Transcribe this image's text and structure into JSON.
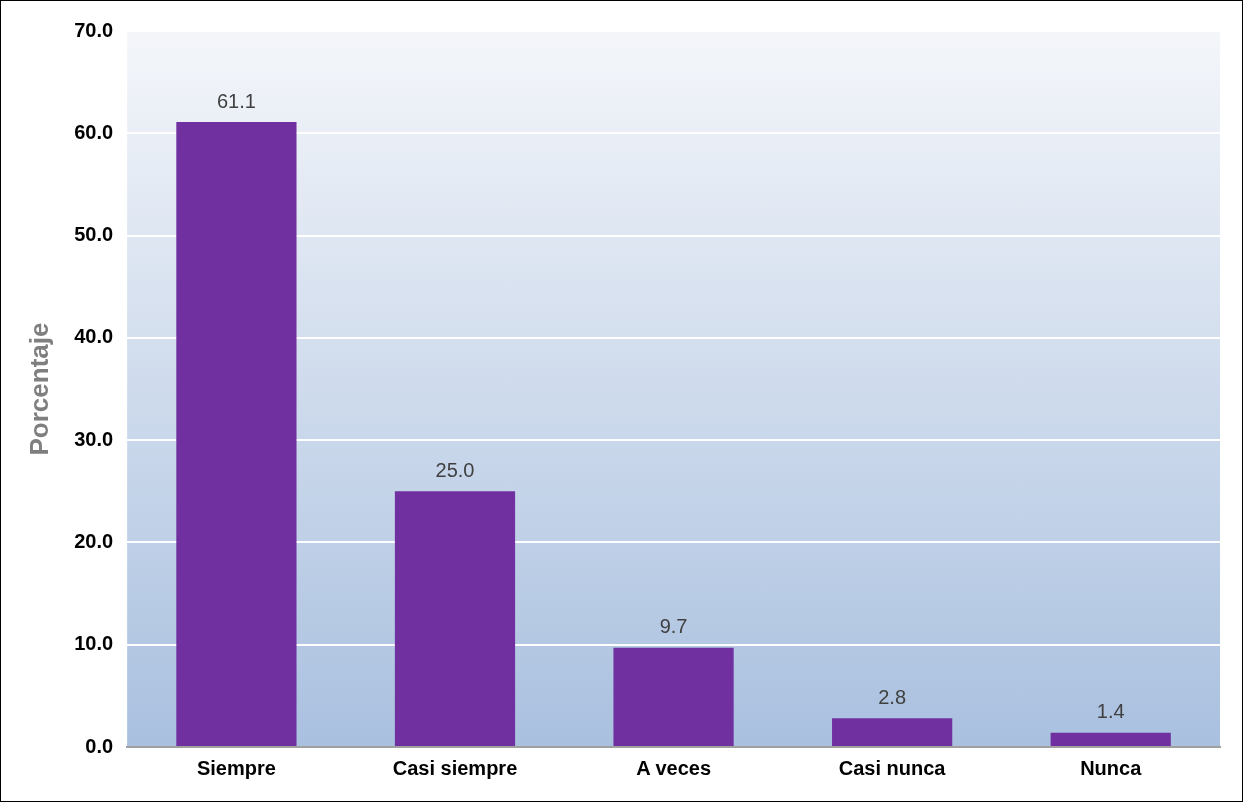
{
  "chart_data": {
    "type": "bar",
    "ylabel": "Porcentaje",
    "categories": [
      "Siempre",
      "Casi siempre",
      "A veces",
      "Casi nunca",
      "Nunca"
    ],
    "values": [
      61.1,
      25.0,
      9.7,
      2.8,
      1.4
    ],
    "value_labels": [
      "61.1",
      "25.0",
      "9.7",
      "2.8",
      "1.4"
    ],
    "color": "#7030a0",
    "ylim": [
      0,
      70
    ],
    "yticks": [
      {
        "value": 0,
        "label": "0.0"
      },
      {
        "value": 10,
        "label": "10.0"
      },
      {
        "value": 20,
        "label": "20.0"
      },
      {
        "value": 30,
        "label": "30.0"
      },
      {
        "value": 40,
        "label": "40.0"
      },
      {
        "value": 50,
        "label": "50.0"
      },
      {
        "value": 60,
        "label": "60.0"
      },
      {
        "value": 70,
        "label": "70.0"
      }
    ],
    "grid": "y",
    "legend": false
  }
}
